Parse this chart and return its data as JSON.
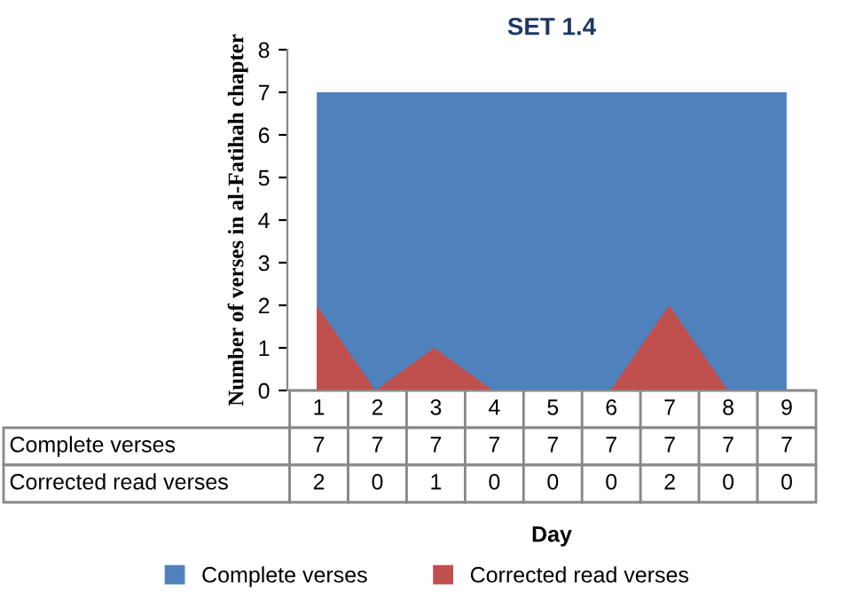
{
  "chart_data": {
    "type": "area",
    "title": "SET 1.4",
    "annotations": [
      "Day"
    ],
    "ylabel": "Number of verses in al-Fatihah chapter",
    "categories": [
      "1",
      "2",
      "3",
      "4",
      "5",
      "6",
      "7",
      "8",
      "9"
    ],
    "series": [
      {
        "name": "Complete verses",
        "color": "#4f81bd",
        "values": [
          7,
          7,
          7,
          7,
          7,
          7,
          7,
          7,
          7
        ]
      },
      {
        "name": "Corrected read verses",
        "color": "#c0504d",
        "values": [
          2,
          0,
          1,
          0,
          0,
          0,
          2,
          0,
          0
        ]
      }
    ],
    "ylim": [
      0,
      8
    ],
    "yticks": [
      0,
      1,
      2,
      3,
      4,
      5,
      6,
      7,
      8
    ],
    "grid": false,
    "legend": "bottom",
    "data_labels": true
  }
}
